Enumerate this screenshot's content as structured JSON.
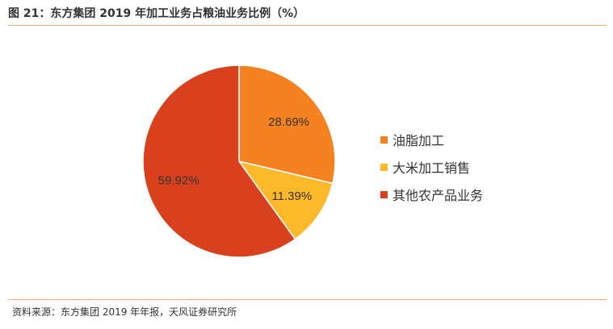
{
  "title": "图 21：东方集团 2019 年加工业务占粮油业务比例（%）",
  "source": "资料来源：东方集团 2019 年年报，天风证券研究所",
  "chart_data": {
    "type": "pie",
    "title": "图 21：东方集团 2019 年加工业务占粮油业务比例（%）",
    "slices": [
      {
        "label": "油脂加工",
        "value": 28.69,
        "display": "28.69%",
        "color": "#f58220"
      },
      {
        "label": "大米加工销售",
        "value": 11.39,
        "display": "11.39%",
        "color": "#fdb92a"
      },
      {
        "label": "其他农产品业务",
        "value": 59.92,
        "display": "59.92%",
        "color": "#d9411e"
      }
    ],
    "start_angle_deg": 0,
    "direction": "clockwise",
    "legend_position": "right"
  }
}
